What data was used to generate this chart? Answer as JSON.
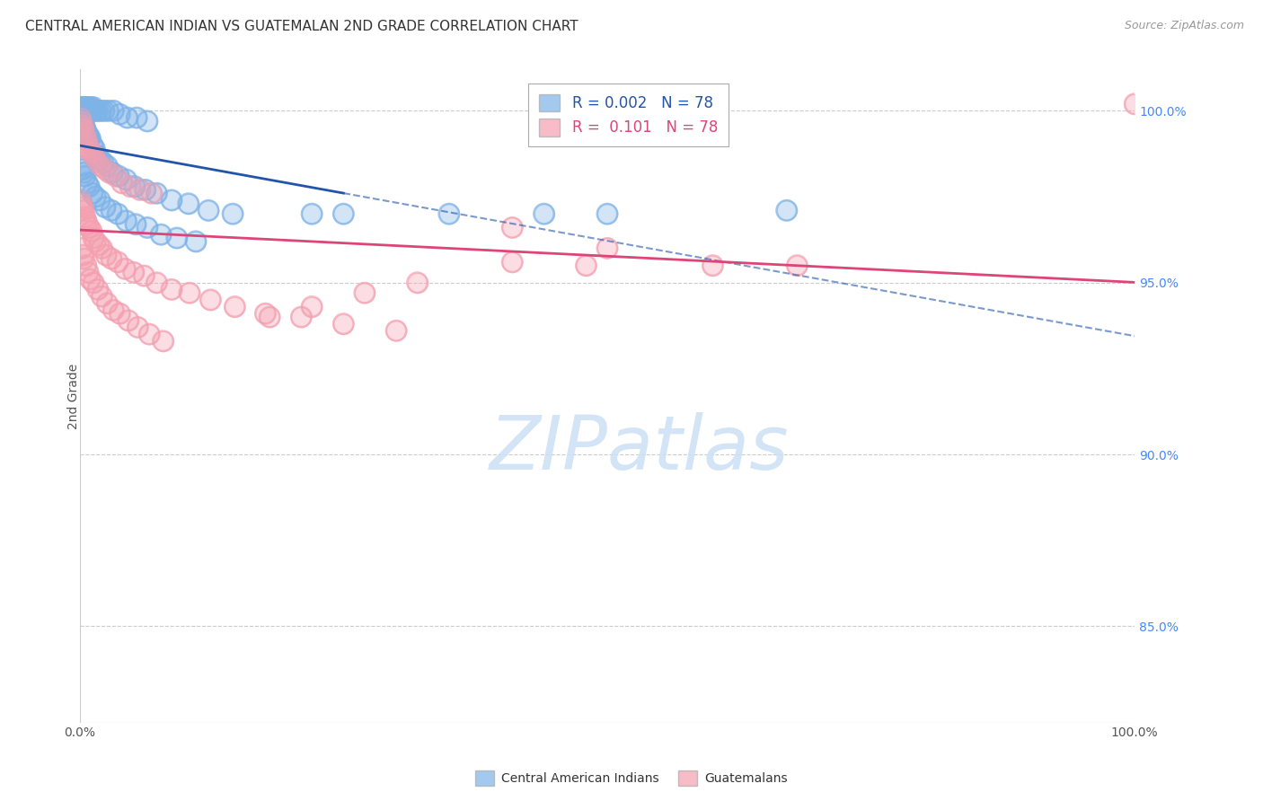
{
  "title": "CENTRAL AMERICAN INDIAN VS GUATEMALAN 2ND GRADE CORRELATION CHART",
  "source": "Source: ZipAtlas.com",
  "ylabel": "2nd Grade",
  "right_yticks": [
    "100.0%",
    "95.0%",
    "90.0%",
    "85.0%"
  ],
  "right_ytick_vals": [
    1.0,
    0.95,
    0.9,
    0.85
  ],
  "legend_blue_label": "Central American Indians",
  "legend_pink_label": "Guatemalans",
  "blue_color": "#7EB3E8",
  "pink_color": "#F4A0B0",
  "blue_line_color": "#2255AA",
  "pink_line_color": "#DD4477",
  "blue_r": 0.002,
  "pink_r": 0.101,
  "xlim": [
    0.0,
    1.0
  ],
  "ylim": [
    0.822,
    1.012
  ],
  "grid_color": "#cccccc",
  "blue_x": [
    0.001,
    0.002,
    0.002,
    0.003,
    0.003,
    0.004,
    0.004,
    0.005,
    0.005,
    0.006,
    0.006,
    0.007,
    0.008,
    0.009,
    0.01,
    0.011,
    0.012,
    0.013,
    0.015,
    0.017,
    0.02,
    0.023,
    0.027,
    0.032,
    0.038,
    0.045,
    0.054,
    0.064,
    0.001,
    0.002,
    0.003,
    0.004,
    0.005,
    0.006,
    0.007,
    0.008,
    0.009,
    0.01,
    0.012,
    0.014,
    0.016,
    0.019,
    0.022,
    0.026,
    0.031,
    0.037,
    0.044,
    0.052,
    0.062,
    0.073,
    0.087,
    0.103,
    0.122,
    0.145,
    0.002,
    0.003,
    0.004,
    0.005,
    0.007,
    0.009,
    0.012,
    0.015,
    0.019,
    0.024,
    0.03,
    0.036,
    0.044,
    0.053,
    0.064,
    0.077,
    0.092,
    0.11,
    0.22,
    0.44,
    0.67,
    0.5,
    0.35,
    0.25
  ],
  "blue_y": [
    1.001,
    1.001,
    1.0,
    1.001,
    1.0,
    1.001,
    1.0,
    1.001,
    1.0,
    1.001,
    1.0,
    1.001,
    1.0,
    1.001,
    1.0,
    1.001,
    1.0,
    1.001,
    1.0,
    1.0,
    1.0,
    1.0,
    1.0,
    1.0,
    0.999,
    0.998,
    0.998,
    0.997,
    0.998,
    0.997,
    0.997,
    0.996,
    0.995,
    0.994,
    0.993,
    0.993,
    0.992,
    0.992,
    0.99,
    0.989,
    0.987,
    0.986,
    0.985,
    0.984,
    0.982,
    0.981,
    0.98,
    0.978,
    0.977,
    0.976,
    0.974,
    0.973,
    0.971,
    0.97,
    0.984,
    0.983,
    0.982,
    0.981,
    0.979,
    0.978,
    0.976,
    0.975,
    0.974,
    0.972,
    0.971,
    0.97,
    0.968,
    0.967,
    0.966,
    0.964,
    0.963,
    0.962,
    0.97,
    0.97,
    0.971,
    0.97,
    0.97,
    0.97
  ],
  "pink_x": [
    0.001,
    0.002,
    0.002,
    0.003,
    0.004,
    0.005,
    0.006,
    0.007,
    0.008,
    0.009,
    0.01,
    0.011,
    0.013,
    0.015,
    0.017,
    0.02,
    0.024,
    0.028,
    0.034,
    0.04,
    0.048,
    0.057,
    0.068,
    0.001,
    0.002,
    0.003,
    0.004,
    0.005,
    0.006,
    0.007,
    0.009,
    0.011,
    0.013,
    0.015,
    0.018,
    0.021,
    0.025,
    0.03,
    0.036,
    0.043,
    0.051,
    0.061,
    0.073,
    0.087,
    0.104,
    0.124,
    0.147,
    0.176,
    0.21,
    0.25,
    0.3,
    0.002,
    0.003,
    0.004,
    0.006,
    0.008,
    0.01,
    0.013,
    0.017,
    0.021,
    0.026,
    0.032,
    0.038,
    0.046,
    0.055,
    0.066,
    0.079,
    0.41,
    0.5,
    0.6,
    0.48,
    0.41,
    0.32,
    0.27,
    0.22,
    0.18,
    0.68,
    1.0
  ],
  "pink_y": [
    0.998,
    0.996,
    0.997,
    0.995,
    0.995,
    0.993,
    0.992,
    0.991,
    0.99,
    0.989,
    0.988,
    0.988,
    0.987,
    0.986,
    0.985,
    0.984,
    0.983,
    0.982,
    0.981,
    0.979,
    0.978,
    0.977,
    0.976,
    0.974,
    0.973,
    0.972,
    0.971,
    0.969,
    0.968,
    0.967,
    0.966,
    0.965,
    0.963,
    0.962,
    0.961,
    0.96,
    0.958,
    0.957,
    0.956,
    0.954,
    0.953,
    0.952,
    0.95,
    0.948,
    0.947,
    0.945,
    0.943,
    0.941,
    0.94,
    0.938,
    0.936,
    0.96,
    0.958,
    0.957,
    0.955,
    0.953,
    0.951,
    0.95,
    0.948,
    0.946,
    0.944,
    0.942,
    0.941,
    0.939,
    0.937,
    0.935,
    0.933,
    0.966,
    0.96,
    0.955,
    0.955,
    0.956,
    0.95,
    0.947,
    0.943,
    0.94,
    0.955,
    1.002
  ]
}
